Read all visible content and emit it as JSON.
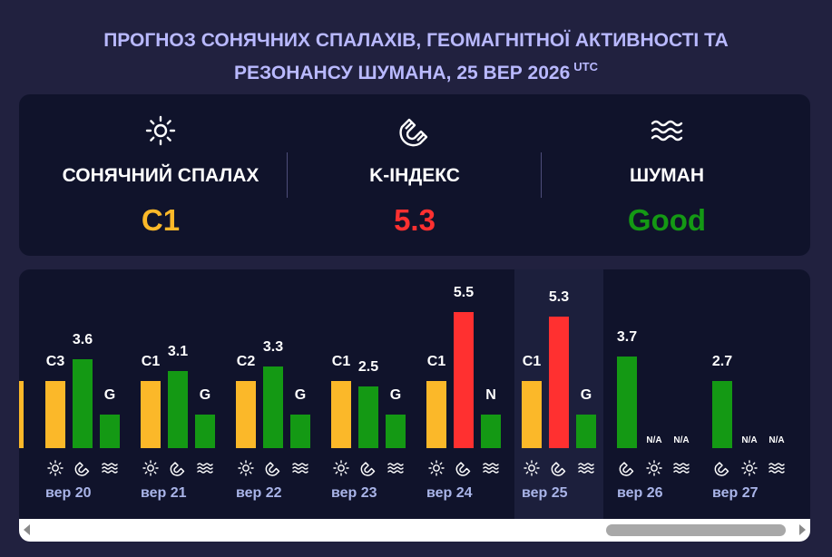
{
  "header": {
    "title_line1": "ПРОГНОЗ СОНЯЧНИХ СПАЛАХІВ, ГЕОМАГНІТНОЇ АКТИВНОСТІ ТА",
    "title_line2": "РЕЗОНАНСУ ШУМАНА, 25 ВЕР 2026",
    "title_sup": "UTC"
  },
  "summary": {
    "items": [
      {
        "icon": "sun-icon",
        "label": "СОНЯЧНИЙ СПАЛАХ",
        "value": "C1",
        "color": "#fbb829"
      },
      {
        "icon": "magnet-icon",
        "label": "K-ІНДЕКС",
        "value": "5.3",
        "color": "#ff3030"
      },
      {
        "icon": "waves-icon",
        "label": "ШУМАН",
        "value": "Good",
        "color": "#149914"
      }
    ]
  },
  "colors": {
    "flare": "#fbb829",
    "kindex_low": "#149914",
    "kindex_high": "#ff3030",
    "schumann": "#149914",
    "highlight": "#1c1f3c"
  },
  "chart_data": {
    "type": "bar",
    "categories": [
      "вер 20",
      "вер 21",
      "вер 22",
      "вер 23",
      "вер 24",
      "вер 25",
      "вер 26",
      "вер 27"
    ],
    "highlighted": "вер 25",
    "series": [
      {
        "name": "",
        "type": "flare",
        "labels": [
          "C3",
          "C1",
          "C2",
          "C1",
          "C1",
          "C1",
          null,
          null
        ],
        "show": [
          true,
          true,
          true,
          true,
          true,
          true,
          false,
          true
        ]
      },
      {
        "name": "",
        "type": "kindex",
        "values": [
          3.6,
          3.1,
          3.3,
          2.5,
          5.5,
          5.3,
          3.7,
          2.7
        ],
        "labels": [
          "3.6",
          "3.1",
          "3.3",
          "2.5",
          "5.5",
          "5.3",
          "3.7",
          "2.7"
        ]
      },
      {
        "name": "",
        "type": "schumann",
        "labels": [
          "G",
          "G",
          "G",
          "G",
          "N",
          "G",
          "N/A",
          "N/A"
        ]
      }
    ],
    "flare_na_labels": [
      "",
      "",
      "",
      "",
      "",
      "",
      "N/A",
      "N/A"
    ]
  }
}
